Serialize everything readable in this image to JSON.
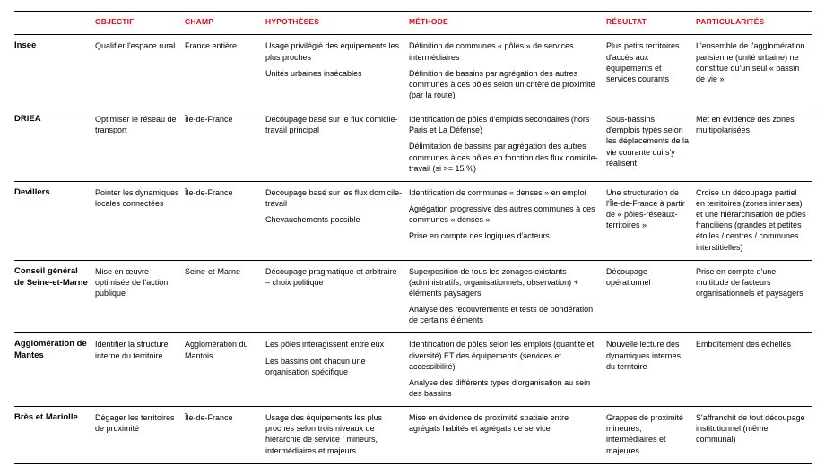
{
  "headers": {
    "objectif": "OBJECTIF",
    "champ": "CHAMP",
    "hypotheses": "HYPOTHÈSES",
    "methode": "MÉTHODE",
    "resultat": "RÉSULTAT",
    "particularites": "PARTICULARITÉS"
  },
  "rows": [
    {
      "name": "Insee",
      "objectif": [
        "Qualifier l'espace rural"
      ],
      "champ": [
        "France entière"
      ],
      "hypotheses": [
        "Usage privilégié des équipements les plus proches",
        "Unités urbaines insécables"
      ],
      "methode": [
        "Définition de communes « pôles » de services intermédiaires",
        "Définition de bassins par agrégation des autres communes à ces pôles selon un critère de proximité (par la route)"
      ],
      "resultat": [
        "Plus petits territoires d'accès aux équipements et services courants"
      ],
      "particularites": [
        "L'ensemble de l'agglomération parisienne (unité urbaine) ne constitue qu'un seul « bassin de vie »"
      ]
    },
    {
      "name": "DRIEA",
      "objectif": [
        "Optimiser le réseau de transport"
      ],
      "champ": [
        "Île-de-France"
      ],
      "hypotheses": [
        "Découpage basé sur le flux domicile-travail principal"
      ],
      "methode": [
        "Identification de pôles d'emplois secondaires (hors Paris et La Défense)",
        "Délimitation de bassins par agrégation des autres communes à ces pôles en fonction des flux domicile-travail (si >= 15 %)"
      ],
      "resultat": [
        "Sous-bassins d'emplois typés selon les déplacements de la vie courante qui s'y réalisent"
      ],
      "particularites": [
        "Met en évidence des zones multipolarisées"
      ]
    },
    {
      "name": "Devillers",
      "objectif": [
        "Pointer les dynamiques locales connectées"
      ],
      "champ": [
        "Île-de-France"
      ],
      "hypotheses": [
        "Découpage basé sur les flux domicile-travail",
        "Chevauchements possible"
      ],
      "methode": [
        "Identification de communes « denses » en emploi",
        "Agrégation progressive des autres communes à ces communes « denses »",
        "Prise en compte des logiques d'acteurs"
      ],
      "resultat": [
        "Une structuration de l'Île-de-France à partir de « pôles-réseaux-territoires »"
      ],
      "particularites": [
        "Croise un découpage partiel en territoires (zones intenses) et une hiérarchisation de pôles franciliens (grandes et petites étoiles / centres / communes interstitielles)"
      ]
    },
    {
      "name": "Conseil général de Seine-et-Marne",
      "objectif": [
        "Mise en œuvre optimisée de l'action publique"
      ],
      "champ": [
        "Seine-et-Marne"
      ],
      "hypotheses": [
        "Découpage pragmatique et arbitraire – choix politique"
      ],
      "methode": [
        "Superposition de tous les zonages existants (administratifs, organisationnels, observation) + éléments paysagers",
        "Analyse des recouvrements et tests de pondération de certains éléments"
      ],
      "resultat": [
        "Découpage opérationnel"
      ],
      "particularites": [
        "Prise en compte d'une multitude de facteurs organisationnels et paysagers"
      ]
    },
    {
      "name": "Agglomération de Mantes",
      "objectif": [
        "Identifier la structure interne du territoire"
      ],
      "champ": [
        "Agglomération du Mantois"
      ],
      "hypotheses": [
        "Les pôles interagissent entre eux",
        "Les bassins ont chacun une organisation spécifique"
      ],
      "methode": [
        "Identification de pôles selon les emplois (quantité et diversité) ET des équipements (services et accessibilité)",
        "Analyse des différents types d'organisation au sein des bassins"
      ],
      "resultat": [
        "Nouvelle lecture des dynamiques internes du territoire"
      ],
      "particularites": [
        "Emboîtement des échelles"
      ]
    },
    {
      "name": "Brès et Mariolle",
      "objectif": [
        "Dégager les territoires de proximité"
      ],
      "champ": [
        "Île-de-France"
      ],
      "hypotheses": [
        "Usage des équipements les plus proches selon trois niveaux de hiérarchie de service : mineurs, intermédiaires et majeurs"
      ],
      "methode": [
        "Mise en évidence de proximité spatiale entre agrégats habités et agrégats de service"
      ],
      "resultat": [
        "Grappes de proximité mineures, intermédiaires et majeures"
      ],
      "particularites": [
        "S'affranchit de tout découpage institutionnel (même communal)"
      ]
    }
  ],
  "colors": {
    "header": "#e30613",
    "rule": "#000000",
    "text": "#000000",
    "bg": "#ffffff"
  }
}
